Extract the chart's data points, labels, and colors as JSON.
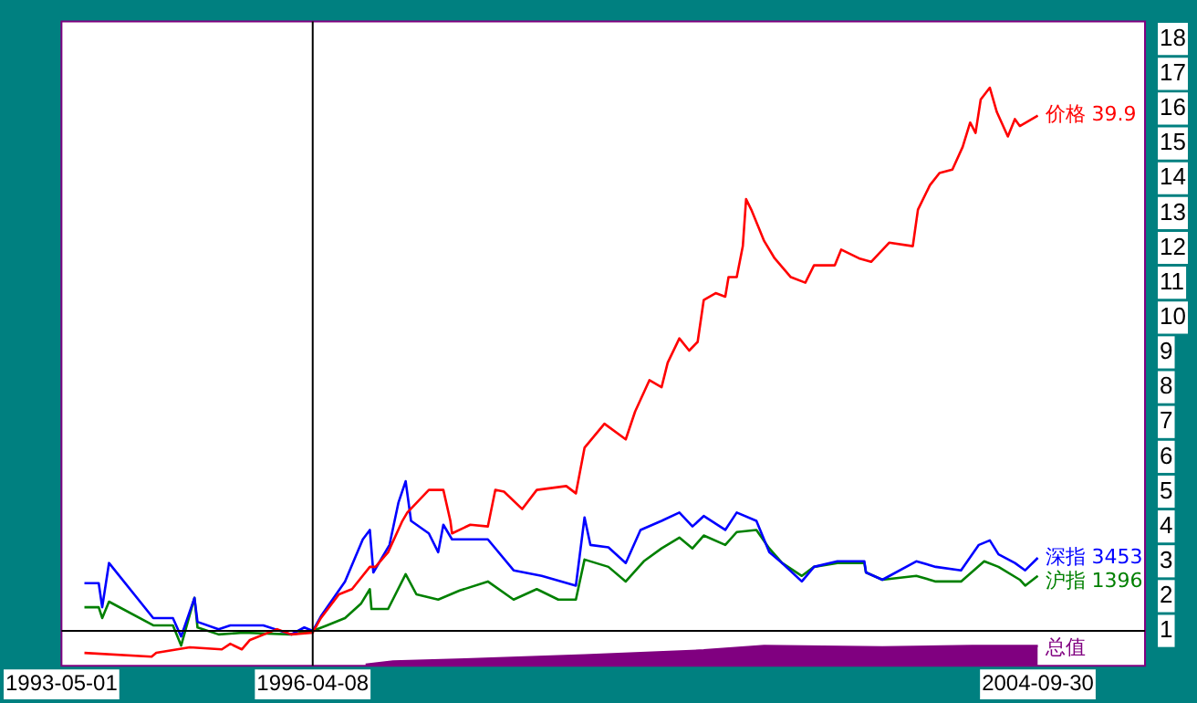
{
  "chart_data": {
    "type": "line",
    "xlim": [
      "1993-05-01",
      "2006-01-01"
    ],
    "xticks": [
      "1993-05-01",
      "1996-04-08",
      "2004-09-30"
    ],
    "ylim": [
      0,
      18.5
    ],
    "yticks": [
      1,
      2,
      3,
      4,
      5,
      6,
      7,
      8,
      9,
      10,
      11,
      12,
      13,
      14,
      15,
      16,
      17,
      18
    ],
    "grid": false,
    "legend": false,
    "marker": "none",
    "line_style": "solid",
    "ref_lines": [
      {
        "axis": "x",
        "value": "1996-04-08",
        "color": "#000000"
      },
      {
        "axis": "y",
        "value": 1,
        "color": "#000000"
      }
    ],
    "series": [
      {
        "name": "价格 39.9",
        "color": "#ff0000",
        "x": [
          "1993-08-07",
          "1994-05-21",
          "1994-06-10",
          "1994-10-31",
          "1995-03-17",
          "1995-04-22",
          "1995-06-10",
          "1995-07-15",
          "1995-11-08",
          "1996-01-07",
          "1996-04-08",
          "1996-05-13",
          "1996-07-29",
          "1996-09-23",
          "1996-12-08",
          "1997-01-01",
          "1997-02-24",
          "1997-04-26",
          "1997-05-17",
          "1997-08-17",
          "1997-10-18",
          "1997-11-17",
          "1997-11-24",
          "1998-02-10",
          "1998-04-26",
          "1998-05-28",
          "1998-07-04",
          "1998-09-20",
          "1998-11-21",
          "1999-03-27",
          "1999-05-07",
          "1999-06-13",
          "1999-09-06",
          "1999-12-06",
          "2000-01-15",
          "2000-03-16",
          "2000-05-07",
          "2000-06-02",
          "2000-07-22",
          "2000-09-02",
          "2000-10-08",
          "2000-11-03",
          "2000-12-24",
          "2001-02-03",
          "2001-02-17",
          "2001-03-24",
          "2001-04-19",
          "2001-05-03",
          "2001-05-25",
          "2001-07-19",
          "2001-09-02",
          "2001-11-10",
          "2002-01-11",
          "2002-02-17",
          "2002-05-17",
          "2002-06-13",
          "2002-08-28",
          "2002-10-19",
          "2003-01-04",
          "2003-04-15",
          "2003-05-07",
          "2003-06-27",
          "2003-08-07",
          "2003-10-01",
          "2003-11-14",
          "2003-12-16",
          "2004-01-08",
          "2004-01-30",
          "2004-03-09",
          "2004-04-08",
          "2004-05-25",
          "2004-06-24",
          "2004-07-15",
          "2004-09-30"
        ],
        "values": [
          0.37,
          0.26,
          0.37,
          0.53,
          0.47,
          0.63,
          0.47,
          0.74,
          1.05,
          0.9,
          0.95,
          1.37,
          2.05,
          2.2,
          2.84,
          2.84,
          3.26,
          4.16,
          4.4,
          5.05,
          5.05,
          4.16,
          3.8,
          4.05,
          4.0,
          5.05,
          5.0,
          4.5,
          5.05,
          5.16,
          4.95,
          6.26,
          6.95,
          6.5,
          7.3,
          8.2,
          8.0,
          8.7,
          9.4,
          9.05,
          9.3,
          10.5,
          10.7,
          10.6,
          11.16,
          11.16,
          12.05,
          13.4,
          13.1,
          12.2,
          11.7,
          11.16,
          11.0,
          11.5,
          11.5,
          11.95,
          11.7,
          11.6,
          12.15,
          12.05,
          13.1,
          13.8,
          14.15,
          14.25,
          14.9,
          15.6,
          15.3,
          16.26,
          16.6,
          15.9,
          15.2,
          15.7,
          15.5,
          15.8
        ]
      },
      {
        "name": "深指 3453",
        "color": "#0000ff",
        "x": [
          "1993-08-07",
          "1993-10-07",
          "1993-10-22",
          "1993-11-20",
          "1994-05-28",
          "1994-08-20",
          "1994-09-24",
          "1994-11-20",
          "1994-12-03",
          "1995-03-03",
          "1995-04-22",
          "1995-09-10",
          "1996-01-07",
          "1996-03-03",
          "1996-04-08",
          "1996-05-13",
          "1996-08-24",
          "1996-11-08",
          "1996-12-08",
          "1996-12-23",
          "1997-03-02",
          "1997-04-09",
          "1997-05-10",
          "1997-06-02",
          "1997-08-17",
          "1997-09-26",
          "1997-10-18",
          "1997-11-24",
          "1998-04-26",
          "1998-08-14",
          "1998-12-12",
          "1999-05-07",
          "1999-06-13",
          "1999-07-08",
          "1999-09-23",
          "1999-12-06",
          "2000-02-07",
          "2000-05-07",
          "2000-07-22",
          "2000-09-16",
          "2000-11-03",
          "2001-02-03",
          "2001-03-24",
          "2001-06-16",
          "2001-08-10",
          "2001-10-04",
          "2001-12-27",
          "2002-02-17",
          "2002-05-28",
          "2002-09-20",
          "2002-09-27",
          "2002-12-06",
          "2003-04-30",
          "2003-07-22",
          "2003-11-07",
          "2004-01-22",
          "2004-03-09",
          "2004-04-15",
          "2004-06-24",
          "2004-08-07",
          "2004-09-30"
        ],
        "values": [
          2.37,
          2.37,
          1.68,
          2.95,
          1.37,
          1.37,
          0.84,
          1.95,
          1.26,
          1.05,
          1.16,
          1.16,
          0.9,
          1.1,
          1.0,
          1.42,
          2.42,
          3.63,
          3.9,
          2.68,
          3.47,
          4.68,
          5.3,
          4.16,
          3.8,
          3.26,
          4.05,
          3.63,
          3.63,
          2.74,
          2.58,
          2.3,
          4.26,
          3.47,
          3.4,
          2.95,
          3.9,
          4.16,
          4.4,
          4.0,
          4.3,
          3.9,
          4.4,
          4.16,
          3.26,
          2.95,
          2.42,
          2.84,
          3.0,
          3.0,
          2.68,
          2.47,
          3.0,
          2.84,
          2.74,
          3.47,
          3.6,
          3.2,
          2.95,
          2.74,
          3.1
        ]
      },
      {
        "name": "沪指 1396",
        "color": "#008000",
        "x": [
          "1993-08-07",
          "1993-10-07",
          "1993-10-22",
          "1993-11-20",
          "1994-05-28",
          "1994-08-20",
          "1994-09-24",
          "1994-11-20",
          "1994-12-03",
          "1995-03-03",
          "1995-06-17",
          "1996-01-07",
          "1996-04-08",
          "1996-06-08",
          "1996-08-24",
          "1996-11-01",
          "1996-12-08",
          "1996-12-15",
          "1997-02-24",
          "1997-05-10",
          "1997-06-25",
          "1997-09-26",
          "1997-12-27",
          "1998-04-26",
          "1998-08-14",
          "1998-11-21",
          "1999-02-21",
          "1999-05-07",
          "1999-06-13",
          "1999-09-23",
          "1999-12-06",
          "2000-02-21",
          "2000-05-07",
          "2000-07-22",
          "2000-09-16",
          "2000-11-03",
          "2001-02-03",
          "2001-03-24",
          "2001-06-16",
          "2001-08-10",
          "2001-10-04",
          "2001-12-27",
          "2002-02-17",
          "2002-05-28",
          "2002-09-20",
          "2002-09-27",
          "2002-12-06",
          "2003-04-30",
          "2003-07-22",
          "2003-11-07",
          "2004-02-14",
          "2004-04-15",
          "2004-07-15",
          "2004-08-07",
          "2004-09-30"
        ],
        "values": [
          1.68,
          1.68,
          1.37,
          1.84,
          1.16,
          1.16,
          0.58,
          1.95,
          1.1,
          0.9,
          0.95,
          0.9,
          1.0,
          1.16,
          1.37,
          1.79,
          2.2,
          1.63,
          1.63,
          2.63,
          2.05,
          1.9,
          2.16,
          2.42,
          1.9,
          2.2,
          1.9,
          1.9,
          3.05,
          2.84,
          2.42,
          3.0,
          3.37,
          3.68,
          3.37,
          3.74,
          3.47,
          3.84,
          3.9,
          3.37,
          2.95,
          2.58,
          2.84,
          2.95,
          2.95,
          2.68,
          2.47,
          2.58,
          2.42,
          2.42,
          3.0,
          2.84,
          2.47,
          2.3,
          2.58
        ]
      },
      {
        "name": "总值",
        "type": "area",
        "color": "#800080",
        "x": [
          "1996-11-20",
          "1997-03-17",
          "1998-01-18",
          "1999-06-13",
          "2000-11-03",
          "2001-07-19",
          "2002-12-06",
          "2003-12-24",
          "2004-09-30"
        ],
        "values": [
          0.03,
          0.12,
          0.18,
          0.3,
          0.44,
          0.57,
          0.53,
          0.57,
          0.57
        ]
      }
    ]
  }
}
